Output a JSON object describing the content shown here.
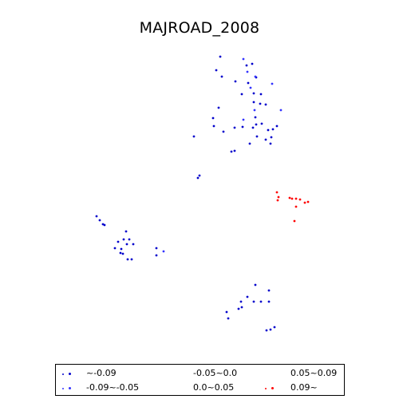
{
  "title": "MAJROAD_2008",
  "legend": {
    "items": [
      {
        "label": "~-0.09",
        "color": "#0000cc"
      },
      {
        "label": "-0.09~-0.05",
        "color": "#3333ff"
      },
      {
        "label": "-0.05~0.0",
        "color": ""
      },
      {
        "label": "0.0~0.05",
        "color": ""
      },
      {
        "label": "0.05~0.09",
        "color": ""
      },
      {
        "label": "0.09~",
        "color": "#ff0000"
      }
    ]
  },
  "points": {
    "class_0": [
      [
        276,
        71
      ],
      [
        271,
        88
      ],
      [
        278,
        96
      ],
      [
        309,
        82
      ],
      [
        316,
        80
      ],
      [
        321,
        97
      ],
      [
        311,
        104
      ],
      [
        303,
        118
      ],
      [
        318,
        117
      ],
      [
        327,
        118
      ],
      [
        326,
        130
      ],
      [
        318,
        128
      ],
      [
        333,
        131
      ],
      [
        295,
        102
      ],
      [
        274,
        135
      ],
      [
        267,
        148
      ],
      [
        268,
        158
      ],
      [
        280,
        165
      ],
      [
        294,
        160
      ],
      [
        304,
        159
      ],
      [
        317,
        160
      ],
      [
        321,
        156
      ],
      [
        320,
        147
      ],
      [
        328,
        155
      ],
      [
        322,
        171
      ],
      [
        313,
        180
      ],
      [
        333,
        175
      ],
      [
        340,
        172
      ],
      [
        336,
        163
      ],
      [
        339,
        180
      ],
      [
        347,
        158
      ],
      [
        342,
        162
      ],
      [
        290,
        190
      ],
      [
        294,
        189
      ],
      [
        243,
        171
      ],
      [
        250,
        220
      ],
      [
        248,
        223
      ],
      [
        121,
        271
      ],
      [
        125,
        276
      ],
      [
        129,
        281
      ],
      [
        131,
        282
      ],
      [
        158,
        290
      ],
      [
        155,
        300
      ],
      [
        148,
        303
      ],
      [
        162,
        300
      ],
      [
        159,
        306
      ],
      [
        167,
        306
      ],
      [
        152,
        312
      ],
      [
        144,
        311
      ],
      [
        151,
        317
      ],
      [
        165,
        325
      ],
      [
        160,
        325
      ],
      [
        154,
        318
      ],
      [
        196,
        311
      ],
      [
        196,
        320
      ],
      [
        320,
        357
      ],
      [
        337,
        364
      ],
      [
        310,
        372
      ],
      [
        318,
        378
      ],
      [
        327,
        378
      ],
      [
        337,
        378
      ],
      [
        302,
        378
      ],
      [
        299,
        387
      ],
      [
        303,
        385
      ],
      [
        286,
        399
      ],
      [
        284,
        391
      ],
      [
        344,
        410
      ],
      [
        339,
        413
      ],
      [
        334,
        414
      ]
    ],
    "class_1": [
      [
        305,
        74
      ],
      [
        310,
        90
      ],
      [
        320,
        96
      ],
      [
        341,
        105
      ],
      [
        352,
        138
      ],
      [
        314,
        110
      ],
      [
        305,
        150
      ],
      [
        319,
        138
      ],
      [
        205,
        315
      ]
    ],
    "class_5": [
      [
        347,
        241
      ],
      [
        349,
        247
      ],
      [
        348,
        251
      ],
      [
        366,
        249
      ],
      [
        363,
        248
      ],
      [
        371,
        249
      ],
      [
        376,
        250
      ],
      [
        371,
        259
      ],
      [
        382,
        254
      ],
      [
        386,
        253
      ],
      [
        369,
        277
      ]
    ]
  }
}
